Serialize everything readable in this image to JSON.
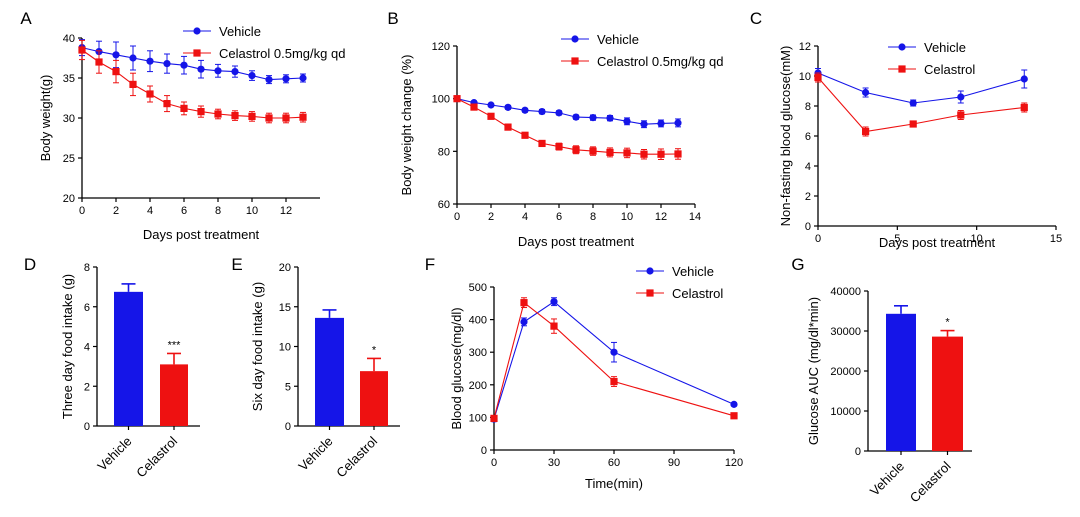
{
  "colors": {
    "vehicle": "#1515e8",
    "celastrol": "#ee1111",
    "axis": "#000000"
  },
  "chart_data": [
    {
      "id": "A",
      "type": "line",
      "letter": "A",
      "xlabel": "Days post treatment",
      "ylabel": "Body weight(g)",
      "xlim": [
        0,
        14
      ],
      "ylim": [
        20,
        40
      ],
      "xticks": [
        0,
        2,
        4,
        6,
        8,
        10,
        12
      ],
      "yticks": [
        20,
        25,
        30,
        35,
        40
      ],
      "legend": {
        "position": "top-right",
        "entries": [
          "Vehicle",
          "Celastrol 0.5mg/kg qd"
        ]
      },
      "series": [
        {
          "name": "Vehicle",
          "color_key": "vehicle",
          "marker": "circle",
          "x": [
            0,
            1,
            2,
            3,
            4,
            5,
            6,
            7,
            8,
            9,
            10,
            11,
            12,
            13
          ],
          "y": [
            38.8,
            38.3,
            37.9,
            37.5,
            37.1,
            36.8,
            36.6,
            36.1,
            35.9,
            35.8,
            35.3,
            34.8,
            34.9,
            35.0
          ],
          "err": [
            1.0,
            1.3,
            1.6,
            1.5,
            1.3,
            1.2,
            1.1,
            1.1,
            0.8,
            0.7,
            0.6,
            0.5,
            0.5,
            0.5
          ]
        },
        {
          "name": "Celastrol 0.5mg/kg qd",
          "color_key": "celastrol",
          "marker": "square",
          "x": [
            0,
            1,
            2,
            3,
            4,
            5,
            6,
            7,
            8,
            9,
            10,
            11,
            12,
            13
          ],
          "y": [
            38.5,
            37.0,
            35.8,
            34.2,
            33.0,
            31.8,
            31.2,
            30.8,
            30.5,
            30.3,
            30.2,
            30.0,
            30.0,
            30.1
          ],
          "err": [
            1.2,
            1.4,
            1.4,
            1.4,
            1.0,
            1.0,
            0.8,
            0.7,
            0.6,
            0.6,
            0.6,
            0.6,
            0.6,
            0.6
          ]
        }
      ]
    },
    {
      "id": "B",
      "type": "line",
      "letter": "B",
      "xlabel": "Days post treatment",
      "ylabel": "Body weight change (%)",
      "xlim": [
        0,
        14
      ],
      "ylim": [
        60,
        120
      ],
      "xticks": [
        0,
        2,
        4,
        6,
        8,
        10,
        12,
        14
      ],
      "yticks": [
        60,
        80,
        100,
        120
      ],
      "legend": {
        "position": "top-right",
        "entries": [
          "Vehicle",
          "Celastrol 0.5mg/kg qd"
        ]
      },
      "series": [
        {
          "name": "Vehicle",
          "color_key": "vehicle",
          "marker": "circle",
          "x": [
            0,
            1,
            2,
            3,
            4,
            5,
            6,
            7,
            8,
            9,
            10,
            11,
            12,
            13
          ],
          "y": [
            100,
            98.5,
            97.6,
            96.7,
            95.6,
            95.1,
            94.6,
            93.0,
            92.8,
            92.6,
            91.4,
            90.3,
            90.6,
            90.8
          ],
          "err": [
            0.3,
            0.5,
            0.6,
            0.7,
            0.7,
            0.8,
            0.8,
            0.8,
            1.0,
            1.0,
            1.3,
            1.3,
            1.3,
            1.5
          ]
        },
        {
          "name": "Celastrol 0.5mg/kg qd",
          "color_key": "celastrol",
          "marker": "square",
          "x": [
            0,
            1,
            2,
            3,
            4,
            5,
            6,
            7,
            8,
            9,
            10,
            11,
            12,
            13
          ],
          "y": [
            100,
            96.8,
            93.3,
            89.2,
            86.1,
            83.0,
            81.8,
            80.6,
            80.1,
            79.6,
            79.4,
            78.9,
            78.9,
            79.0
          ],
          "err": [
            0.3,
            0.6,
            0.8,
            0.9,
            1.0,
            1.1,
            1.3,
            1.5,
            1.6,
            1.7,
            1.8,
            1.8,
            2.0,
            2.0
          ]
        }
      ]
    },
    {
      "id": "C",
      "type": "line",
      "letter": "C",
      "xlabel": "Days post treatment",
      "ylabel": "Non-fasting blood glucose(mM)",
      "xlim": [
        0,
        15
      ],
      "ylim": [
        0,
        12
      ],
      "xticks": [
        0,
        5,
        10,
        15
      ],
      "yticks": [
        0,
        2,
        4,
        6,
        8,
        10,
        12
      ],
      "legend": {
        "position": "top-right",
        "entries": [
          "Vehicle",
          "Celastrol"
        ]
      },
      "series": [
        {
          "name": "Vehicle",
          "color_key": "vehicle",
          "marker": "circle",
          "x": [
            0,
            3,
            6,
            9,
            13
          ],
          "y": [
            10.2,
            8.9,
            8.2,
            8.6,
            9.8
          ],
          "err": [
            0.3,
            0.3,
            0.2,
            0.4,
            0.6
          ]
        },
        {
          "name": "Celastrol",
          "color_key": "celastrol",
          "marker": "square",
          "x": [
            0,
            3,
            6,
            9,
            13
          ],
          "y": [
            9.9,
            6.3,
            6.8,
            7.4,
            7.9
          ],
          "err": [
            0.3,
            0.3,
            0.2,
            0.3,
            0.3
          ]
        }
      ]
    },
    {
      "id": "D",
      "type": "bar",
      "letter": "D",
      "ylabel": "Three day food intake (g)",
      "ylim": [
        0,
        8
      ],
      "yticks": [
        0,
        2,
        4,
        6,
        8
      ],
      "categories": [
        "Vehicle",
        "Celastrol"
      ],
      "values": [
        6.75,
        3.1
      ],
      "err": [
        0.4,
        0.55
      ],
      "significance": [
        "",
        "***"
      ]
    },
    {
      "id": "E",
      "type": "bar",
      "letter": "E",
      "ylabel": "Six day food intake (g)",
      "ylim": [
        0,
        20
      ],
      "yticks": [
        0,
        5,
        10,
        15,
        20
      ],
      "categories": [
        "Vehicle",
        "Celastrol"
      ],
      "values": [
        13.6,
        6.9
      ],
      "err": [
        1.0,
        1.6
      ],
      "significance": [
        "",
        "*"
      ]
    },
    {
      "id": "F",
      "type": "line",
      "letter": "F",
      "xlabel": "Time(min)",
      "ylabel": "Blood glucose(mg/dl)",
      "xlim": [
        0,
        120
      ],
      "ylim": [
        0,
        500
      ],
      "xticks": [
        0,
        30,
        60,
        90,
        120
      ],
      "yticks": [
        0,
        100,
        200,
        300,
        400,
        500
      ],
      "legend": {
        "position": "top-right",
        "entries": [
          "Vehicle",
          "Celastrol"
        ]
      },
      "series": [
        {
          "name": "Vehicle",
          "color_key": "vehicle",
          "marker": "circle",
          "x": [
            0,
            15,
            30,
            60,
            120
          ],
          "y": [
            95,
            393,
            455,
            300,
            140
          ],
          "err": [
            8,
            12,
            12,
            30,
            5
          ]
        },
        {
          "name": "Celastrol",
          "color_key": "celastrol",
          "marker": "square",
          "x": [
            0,
            15,
            30,
            60,
            120
          ],
          "y": [
            97,
            452,
            380,
            210,
            105
          ],
          "err": [
            8,
            15,
            22,
            15,
            5
          ]
        }
      ]
    },
    {
      "id": "G",
      "type": "bar",
      "letter": "G",
      "ylabel": "Glucose AUC (mg/dl*min)",
      "ylim": [
        0,
        40000
      ],
      "yticks": [
        0,
        10000,
        20000,
        30000,
        40000
      ],
      "categories": [
        "Vehicle",
        "Celastrol"
      ],
      "values": [
        34300,
        28600
      ],
      "err": [
        2000,
        1500
      ],
      "significance": [
        "",
        "*"
      ]
    }
  ]
}
